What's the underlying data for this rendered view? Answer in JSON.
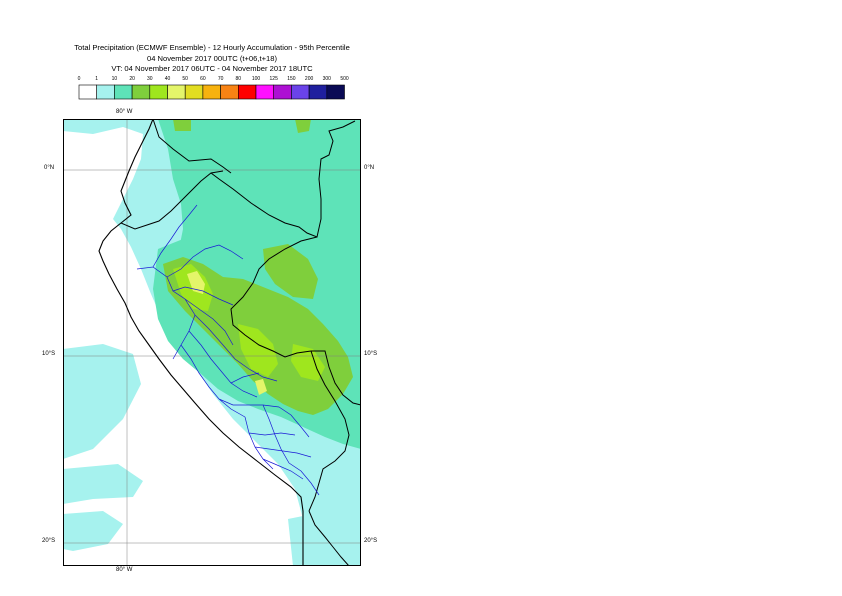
{
  "title": {
    "line1": "Total Precipitation (ECMWF Ensemble) - 12 Hourly Accumulation - 95th Percentile",
    "line2": "04 November 2017 00UTC (t+06,t+18)",
    "line3": "VT: 04 November 2017 06UTC - 04 November 2017 18UTC"
  },
  "legend": {
    "ticks": [
      "0",
      "1",
      "10",
      "20",
      "30",
      "40",
      "50",
      "60",
      "70",
      "80",
      "100",
      "125",
      "150",
      "200",
      "300",
      "500"
    ],
    "colors": [
      "#ffffff",
      "#a6f2ee",
      "#5ee3b8",
      "#7fcf3c",
      "#9fe61e",
      "#e4f56a",
      "#e2dd21",
      "#f7b20e",
      "#f88314",
      "#ff0000",
      "#ff10ff",
      "#ad10d3",
      "#6a43e9",
      "#1f1f9e",
      "#0a0a55"
    ]
  },
  "map": {
    "lon_labels": {
      "top": "80° W",
      "bottom": "80° W"
    },
    "lat_labels": [
      "0°N",
      "10°S",
      "20°S"
    ],
    "colors": {
      "c1": "#a6f2ee",
      "c10": "#5ee3b8",
      "c20": "#7fcf3c",
      "c30": "#9fe61e",
      "c40": "#e4f56a",
      "country_border": "#000000",
      "dept_border": "#1a1ad6",
      "grid": "#808080"
    }
  }
}
